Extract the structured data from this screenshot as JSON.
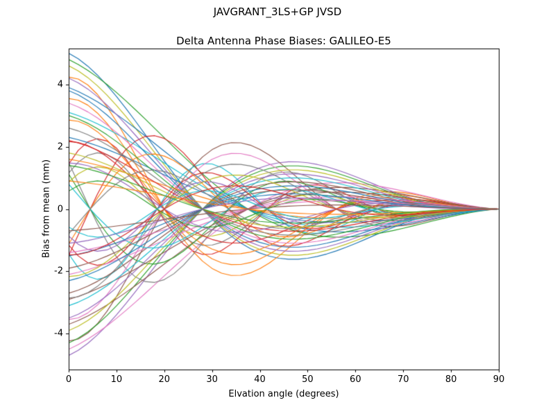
{
  "chart_data": {
    "type": "line",
    "suptitle": "JAVGRANT_3LS+GP JVSD",
    "title": "Delta Antenna Phase Biases: GALILEO-E5",
    "xlabel": "Elvation angle (degrees)",
    "ylabel": "Bias from mean (mm)",
    "xlim": [
      0,
      90
    ],
    "ylim": [
      -5.15,
      5.15
    ],
    "x_ticks": [
      0,
      10,
      20,
      30,
      40,
      50,
      60,
      70,
      80,
      90
    ],
    "y_ticks": [
      -4,
      -2,
      0,
      2,
      4
    ],
    "grid": false,
    "legend": "none",
    "x_step": 2,
    "model": "y = a * cos(2*pi*(x - x0)/p) * (1 - x/90)^1.35 ; all curves converge to 0 mm at 90 deg elevation",
    "series_params_format": [
      "amplitude_mm_a",
      "period_deg_p",
      "phase_center_deg_x0"
    ],
    "series": [
      [
        5.0,
        112,
        0
      ],
      [
        -4.3,
        72,
        38
      ],
      [
        4.8,
        150,
        0
      ],
      [
        2.5,
        46,
        7
      ],
      [
        -4.7,
        112,
        0
      ],
      [
        4.3,
        72,
        38
      ],
      [
        -4.5,
        150,
        0
      ],
      [
        3.2,
        58,
        -10
      ],
      [
        4.6,
        112,
        0
      ],
      [
        -2.5,
        46,
        7
      ],
      [
        3.9,
        150,
        0
      ],
      [
        -3.6,
        72,
        38
      ],
      [
        -4.3,
        112,
        0
      ],
      [
        -3.2,
        58,
        -10
      ],
      [
        4.2,
        112,
        0
      ],
      [
        -3.7,
        150,
        0
      ],
      [
        3.6,
        72,
        38
      ],
      [
        2.0,
        46,
        7
      ],
      [
        -3.9,
        112,
        0
      ],
      [
        3.1,
        150,
        0
      ],
      [
        3.8,
        112,
        0
      ],
      [
        -2.9,
        72,
        38
      ],
      [
        2.4,
        58,
        -10
      ],
      [
        -2.0,
        46,
        7
      ],
      [
        -3.5,
        112,
        0
      ],
      [
        -2.9,
        150,
        0
      ],
      [
        3.4,
        112,
        0
      ],
      [
        2.9,
        72,
        38
      ],
      [
        1.5,
        46,
        7
      ],
      [
        -3.1,
        112,
        0
      ],
      [
        2.3,
        150,
        0
      ],
      [
        -2.4,
        58,
        -10
      ],
      [
        3.0,
        112,
        0
      ],
      [
        -2.2,
        72,
        38
      ],
      [
        -1.5,
        46,
        7
      ],
      [
        -2.7,
        112,
        0
      ],
      [
        -2.1,
        150,
        0
      ],
      [
        2.6,
        112,
        0
      ],
      [
        2.2,
        72,
        38
      ],
      [
        1.7,
        58,
        -10
      ],
      [
        -2.3,
        112,
        0
      ],
      [
        1.6,
        150,
        0
      ],
      [
        1.0,
        46,
        7
      ],
      [
        2.2,
        112,
        0
      ],
      [
        -1.5,
        72,
        38
      ],
      [
        -1.9,
        112,
        0
      ],
      [
        -1.4,
        150,
        0
      ],
      [
        -1.7,
        58,
        -10
      ],
      [
        1.8,
        112,
        0
      ],
      [
        -1.0,
        46,
        7
      ],
      [
        -1.5,
        112,
        0
      ],
      [
        0.9,
        150,
        0
      ],
      [
        1.4,
        112,
        0
      ],
      [
        1.5,
        72,
        38
      ],
      [
        -1.1,
        112,
        0
      ],
      [
        -0.7,
        150,
        0
      ]
    ],
    "palette": [
      "#1f77b4",
      "#ff7f0e",
      "#2ca02c",
      "#d62728",
      "#9467bd",
      "#8c564b",
      "#e377c2",
      "#7f7f7f",
      "#bcbd22",
      "#17becf"
    ],
    "axis_color": "#000000",
    "background_color": "#ffffff"
  }
}
